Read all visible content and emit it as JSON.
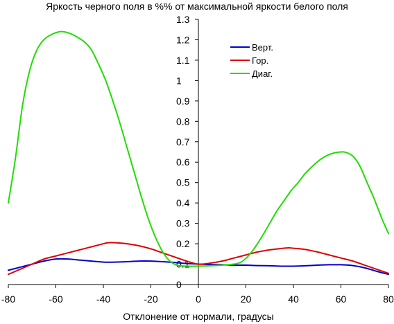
{
  "chart_data": {
    "type": "line",
    "title": "Яркость черного поля в %% от максимальной яркости белого поля",
    "xlabel": "Отклонение от нормали, градусы",
    "ylabel": "",
    "xlim": [
      -80,
      80
    ],
    "ylim": [
      0,
      1.3
    ],
    "x_ticks": [
      -80,
      -60,
      -40,
      -20,
      0,
      20,
      40,
      60,
      80
    ],
    "y_ticks": [
      0,
      0.1,
      0.2,
      0.3,
      0.4,
      0.5,
      0.6,
      0.7,
      0.8,
      0.9,
      1,
      1.1,
      1.2,
      1.3
    ],
    "x_tick_labels": [
      "-80",
      "-60",
      "-40",
      "-20",
      "0",
      "20",
      "40",
      "60",
      "80"
    ],
    "y_tick_labels": [
      "0",
      "0.1",
      "0.2",
      "0.3",
      "0.4",
      "0.5",
      "0.6",
      "0.7",
      "0.8",
      "0.9",
      "1",
      "1.1",
      "1.2",
      "1.3"
    ],
    "grid": false,
    "legend_position": "top-right",
    "series": [
      {
        "name": "Верт.",
        "color": "#0000cc",
        "points": [
          [
            -80,
            0.07
          ],
          [
            -75,
            0.085
          ],
          [
            -70,
            0.1
          ],
          [
            -65,
            0.115
          ],
          [
            -60,
            0.125
          ],
          [
            -55,
            0.125
          ],
          [
            -50,
            0.12
          ],
          [
            -45,
            0.115
          ],
          [
            -40,
            0.11
          ],
          [
            -35,
            0.11
          ],
          [
            -30,
            0.112
          ],
          [
            -25,
            0.115
          ],
          [
            -20,
            0.115
          ],
          [
            -15,
            0.112
          ],
          [
            -10,
            0.108
          ],
          [
            -5,
            0.103
          ],
          [
            0,
            0.1
          ],
          [
            5,
            0.098
          ],
          [
            10,
            0.097
          ],
          [
            15,
            0.095
          ],
          [
            20,
            0.095
          ],
          [
            25,
            0.093
          ],
          [
            30,
            0.092
          ],
          [
            35,
            0.09
          ],
          [
            40,
            0.09
          ],
          [
            45,
            0.092
          ],
          [
            50,
            0.095
          ],
          [
            55,
            0.097
          ],
          [
            60,
            0.097
          ],
          [
            65,
            0.093
          ],
          [
            70,
            0.082
          ],
          [
            75,
            0.065
          ],
          [
            80,
            0.05
          ]
        ]
      },
      {
        "name": "Гор.",
        "color": "#dd0000",
        "points": [
          [
            -80,
            0.05
          ],
          [
            -75,
            0.075
          ],
          [
            -70,
            0.1
          ],
          [
            -65,
            0.125
          ],
          [
            -60,
            0.14
          ],
          [
            -55,
            0.155
          ],
          [
            -50,
            0.17
          ],
          [
            -45,
            0.185
          ],
          [
            -40,
            0.2
          ],
          [
            -38,
            0.205
          ],
          [
            -35,
            0.205
          ],
          [
            -30,
            0.2
          ],
          [
            -25,
            0.19
          ],
          [
            -20,
            0.175
          ],
          [
            -15,
            0.155
          ],
          [
            -10,
            0.135
          ],
          [
            -5,
            0.115
          ],
          [
            0,
            0.1
          ],
          [
            5,
            0.105
          ],
          [
            10,
            0.115
          ],
          [
            15,
            0.13
          ],
          [
            20,
            0.145
          ],
          [
            25,
            0.16
          ],
          [
            30,
            0.17
          ],
          [
            35,
            0.177
          ],
          [
            38,
            0.18
          ],
          [
            40,
            0.178
          ],
          [
            45,
            0.172
          ],
          [
            50,
            0.16
          ],
          [
            55,
            0.145
          ],
          [
            60,
            0.13
          ],
          [
            65,
            0.115
          ],
          [
            70,
            0.095
          ],
          [
            75,
            0.075
          ],
          [
            80,
            0.055
          ]
        ]
      },
      {
        "name": "Диаг.",
        "color": "#22dd00",
        "points": [
          [
            -80,
            0.4
          ],
          [
            -77,
            0.62
          ],
          [
            -74,
            0.88
          ],
          [
            -71,
            1.05
          ],
          [
            -68,
            1.15
          ],
          [
            -65,
            1.2
          ],
          [
            -62,
            1.225
          ],
          [
            -58,
            1.24
          ],
          [
            -55,
            1.235
          ],
          [
            -52,
            1.22
          ],
          [
            -48,
            1.19
          ],
          [
            -45,
            1.15
          ],
          [
            -42,
            1.08
          ],
          [
            -39,
            1.0
          ],
          [
            -36,
            0.9
          ],
          [
            -33,
            0.79
          ],
          [
            -30,
            0.67
          ],
          [
            -27,
            0.55
          ],
          [
            -24,
            0.43
          ],
          [
            -21,
            0.32
          ],
          [
            -18,
            0.23
          ],
          [
            -15,
            0.16
          ],
          [
            -12,
            0.115
          ],
          [
            -9,
            0.095
          ],
          [
            -5,
            0.09
          ],
          [
            0,
            0.09
          ],
          [
            5,
            0.092
          ],
          [
            10,
            0.095
          ],
          [
            15,
            0.1
          ],
          [
            18,
            0.11
          ],
          [
            21,
            0.14
          ],
          [
            24,
            0.185
          ],
          [
            27,
            0.24
          ],
          [
            30,
            0.3
          ],
          [
            33,
            0.36
          ],
          [
            36,
            0.41
          ],
          [
            39,
            0.46
          ],
          [
            42,
            0.5
          ],
          [
            45,
            0.545
          ],
          [
            48,
            0.58
          ],
          [
            51,
            0.61
          ],
          [
            54,
            0.632
          ],
          [
            57,
            0.645
          ],
          [
            60,
            0.65
          ],
          [
            62,
            0.648
          ],
          [
            65,
            0.63
          ],
          [
            68,
            0.58
          ],
          [
            71,
            0.5
          ],
          [
            74,
            0.42
          ],
          [
            77,
            0.33
          ],
          [
            80,
            0.25
          ]
        ]
      }
    ]
  }
}
